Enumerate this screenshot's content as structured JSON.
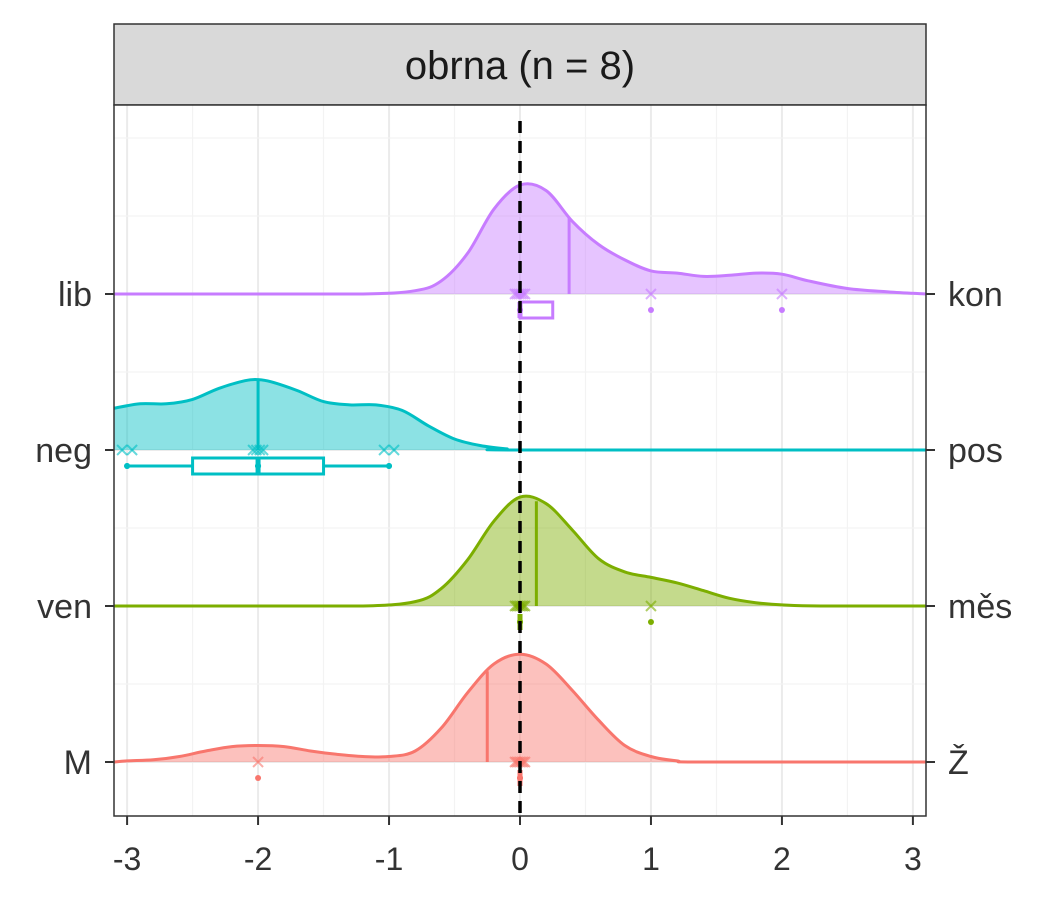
{
  "chart_data": {
    "type": "ridgeline",
    "title": "obrna (n = 8)",
    "xlabel": "",
    "ylabel": "",
    "xlim": [
      -3.1,
      3.1
    ],
    "x_ticks": [
      "-3",
      "-2",
      "-1",
      "0",
      "1",
      "2",
      "3"
    ],
    "x_tick_values": [
      -3,
      -2,
      -1,
      0,
      1,
      2,
      3
    ],
    "grid": true,
    "reference_line": {
      "x": 0,
      "style": "dashed",
      "color": "#000000"
    },
    "series": [
      {
        "left_label": "lib",
        "right_label": "kon",
        "color": "#C77CFF",
        "density": [
          [
            -3.1,
            0
          ],
          [
            -2,
            0
          ],
          [
            -1.2,
            0
          ],
          [
            -0.8,
            0.03
          ],
          [
            -0.6,
            0.12
          ],
          [
            -0.4,
            0.37
          ],
          [
            -0.2,
            0.77
          ],
          [
            0,
            0.99
          ],
          [
            0.2,
            0.94
          ],
          [
            0.4,
            0.66
          ],
          [
            0.6,
            0.45
          ],
          [
            0.8,
            0.31
          ],
          [
            1.0,
            0.21
          ],
          [
            1.2,
            0.19
          ],
          [
            1.4,
            0.16
          ],
          [
            1.6,
            0.17
          ],
          [
            1.8,
            0.19
          ],
          [
            2.0,
            0.18
          ],
          [
            2.2,
            0.12
          ],
          [
            2.5,
            0.05
          ],
          [
            2.8,
            0.02
          ],
          [
            3.1,
            0
          ]
        ],
        "mean": 0.375,
        "points": [
          0,
          0,
          0,
          0,
          0,
          0,
          1,
          2
        ],
        "box": {
          "min": 0,
          "q1": 0,
          "median": 0,
          "q3": 0.25,
          "max": 0.25
        }
      },
      {
        "left_label": "neg",
        "right_label": "pos",
        "color": "#00BFC4",
        "density": [
          [
            -3.1,
            0.38
          ],
          [
            -2.9,
            0.42
          ],
          [
            -2.7,
            0.42
          ],
          [
            -2.5,
            0.46
          ],
          [
            -2.3,
            0.56
          ],
          [
            -2.1,
            0.63
          ],
          [
            -2.0,
            0.64
          ],
          [
            -1.9,
            0.62
          ],
          [
            -1.7,
            0.54
          ],
          [
            -1.5,
            0.44
          ],
          [
            -1.3,
            0.41
          ],
          [
            -1.1,
            0.41
          ],
          [
            -0.9,
            0.36
          ],
          [
            -0.7,
            0.22
          ],
          [
            -0.5,
            0.1
          ],
          [
            -0.3,
            0.04
          ],
          [
            -0.1,
            0.01
          ],
          [
            0,
            0
          ],
          [
            3.1,
            0
          ]
        ],
        "mean": -2,
        "points": [
          -3,
          -3,
          -2,
          -2,
          -2,
          -2,
          -1,
          -1
        ],
        "box": {
          "min": -3,
          "q1": -2.5,
          "median": -2,
          "q3": -1.5,
          "max": -1
        }
      },
      {
        "left_label": "ven",
        "right_label": "měs",
        "color": "#7CAE00",
        "density": [
          [
            -3.1,
            0
          ],
          [
            -2,
            0
          ],
          [
            -1.2,
            0
          ],
          [
            -0.8,
            0.04
          ],
          [
            -0.6,
            0.16
          ],
          [
            -0.4,
            0.42
          ],
          [
            -0.2,
            0.77
          ],
          [
            0,
            0.99
          ],
          [
            0.2,
            0.93
          ],
          [
            0.4,
            0.69
          ],
          [
            0.6,
            0.43
          ],
          [
            0.8,
            0.31
          ],
          [
            1.0,
            0.26
          ],
          [
            1.2,
            0.21
          ],
          [
            1.4,
            0.14
          ],
          [
            1.6,
            0.07
          ],
          [
            1.8,
            0.03
          ],
          [
            2.0,
            0.01
          ],
          [
            2.3,
            0
          ],
          [
            3.1,
            0
          ]
        ],
        "mean": 0.125,
        "points": [
          0,
          0,
          0,
          0,
          0,
          0,
          0,
          1
        ],
        "box": {
          "min": 0,
          "q1": 0,
          "median": 0,
          "q3": 0,
          "max": 0
        }
      },
      {
        "left_label": "M",
        "right_label": "Ž",
        "color": "#F8766D",
        "density": [
          [
            -3.1,
            0
          ],
          [
            -3,
            0.01
          ],
          [
            -2.8,
            0.02
          ],
          [
            -2.6,
            0.05
          ],
          [
            -2.4,
            0.1
          ],
          [
            -2.2,
            0.14
          ],
          [
            -2.0,
            0.15
          ],
          [
            -1.8,
            0.14
          ],
          [
            -1.6,
            0.1
          ],
          [
            -1.4,
            0.07
          ],
          [
            -1.2,
            0.05
          ],
          [
            -1.0,
            0.05
          ],
          [
            -0.8,
            0.1
          ],
          [
            -0.6,
            0.31
          ],
          [
            -0.4,
            0.63
          ],
          [
            -0.2,
            0.89
          ],
          [
            0,
            0.98
          ],
          [
            0.2,
            0.89
          ],
          [
            0.4,
            0.65
          ],
          [
            0.6,
            0.38
          ],
          [
            0.8,
            0.15
          ],
          [
            1.0,
            0.05
          ],
          [
            1.2,
            0.01
          ],
          [
            1.4,
            0
          ],
          [
            3.1,
            0
          ]
        ],
        "mean": -0.25,
        "points": [
          -2,
          0,
          0,
          0,
          0,
          0,
          0,
          0
        ],
        "box": {
          "min": 0,
          "q1": 0,
          "median": 0,
          "q3": 0,
          "max": 0
        }
      }
    ]
  }
}
